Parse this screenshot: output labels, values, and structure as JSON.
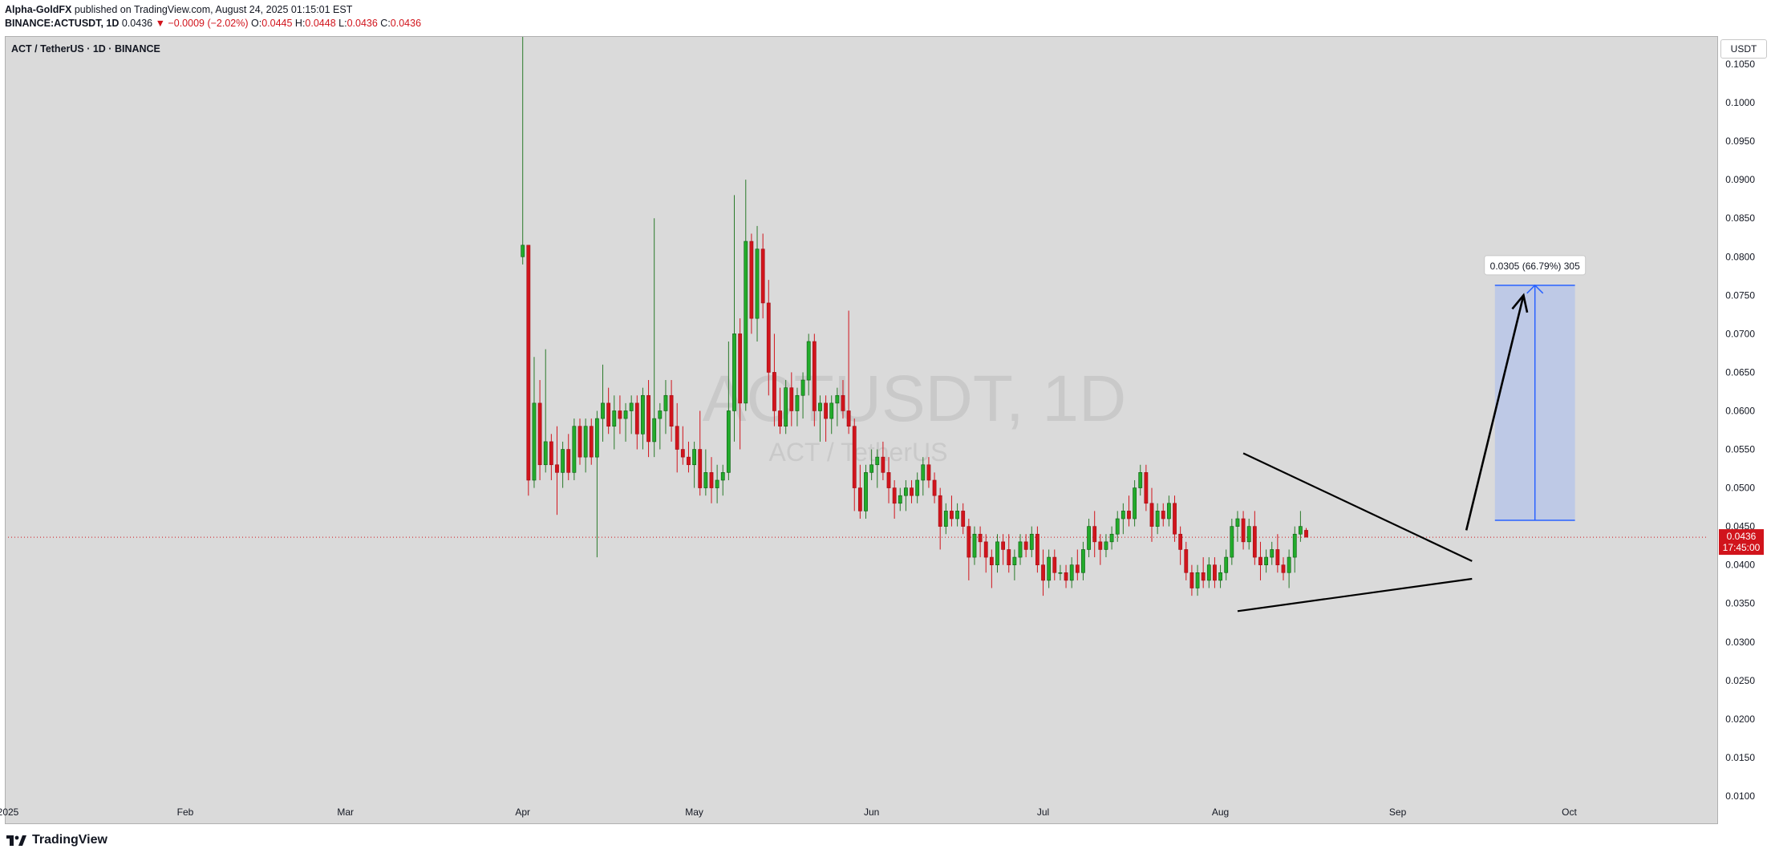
{
  "header": {
    "author": "Alpha-GoldFX",
    "published": "published on TradingView.com, August 24, 2025 01:15:01 EST",
    "symbol_line": "BINANCE:ACTUSDT, 1D",
    "last": "0.0436",
    "change": "−0.0009 (−2.02%)",
    "o_label": "O:",
    "o": "0.0445",
    "h_label": "H:",
    "h": "0.0448",
    "l_label": "L:",
    "l": "0.0436",
    "c_label": "C:",
    "c": "0.0436"
  },
  "legend": "ACT / TetherUS · 1D · BINANCE",
  "watermark": {
    "line1": "ACTUSDT, 1D",
    "line2": "ACT / TetherUS"
  },
  "currency": "USDT",
  "footer": {
    "brand": "TradingView"
  },
  "price_label": {
    "value": "0.0436",
    "countdown": "17:45:00"
  },
  "measure_label": "0.0305 (66.79%) 305",
  "colors": {
    "up": "#089981",
    "down": "#d1141c",
    "up_body": "#22ab2b",
    "range_fill": "#b8c6e8",
    "range_line": "#2962ff"
  },
  "chart_data": {
    "type": "candlestick",
    "title": "ACT / TetherUS · 1D · BINANCE",
    "ylim": [
      0.009,
      0.108
    ],
    "y_ticks": [
      "0.0100",
      "0.0150",
      "0.0200",
      "0.0250",
      "0.0300",
      "0.0350",
      "0.0400",
      "0.0450",
      "0.0500",
      "0.0550",
      "0.0600",
      "0.0650",
      "0.0700",
      "0.0750",
      "0.0800",
      "0.0850",
      "0.0900",
      "0.0950",
      "0.1000",
      "0.1050"
    ],
    "x_ticks": [
      "2025",
      "Feb",
      "Mar",
      "Apr",
      "May",
      "Jun",
      "Jul",
      "Aug",
      "Sep",
      "Oct"
    ],
    "x_tick_days": [
      0,
      31,
      59,
      90,
      120,
      151,
      181,
      212,
      243,
      273
    ],
    "first_candle_day": 90,
    "last_price": 0.0436,
    "candles": [
      [
        0.08,
        0.11,
        0.079,
        0.0815
      ],
      [
        0.0815,
        0.0815,
        0.049,
        0.051
      ],
      [
        0.051,
        0.067,
        0.05,
        0.061
      ],
      [
        0.061,
        0.064,
        0.051,
        0.053
      ],
      [
        0.053,
        0.068,
        0.052,
        0.056
      ],
      [
        0.056,
        0.057,
        0.051,
        0.053
      ],
      [
        0.053,
        0.058,
        0.0465,
        0.052
      ],
      [
        0.052,
        0.056,
        0.05,
        0.055
      ],
      [
        0.055,
        0.057,
        0.051,
        0.052
      ],
      [
        0.052,
        0.059,
        0.051,
        0.058
      ],
      [
        0.058,
        0.059,
        0.053,
        0.054
      ],
      [
        0.054,
        0.059,
        0.052,
        0.058
      ],
      [
        0.058,
        0.059,
        0.053,
        0.054
      ],
      [
        0.054,
        0.06,
        0.041,
        0.059
      ],
      [
        0.059,
        0.066,
        0.056,
        0.061
      ],
      [
        0.061,
        0.063,
        0.057,
        0.058
      ],
      [
        0.058,
        0.062,
        0.055,
        0.06
      ],
      [
        0.06,
        0.062,
        0.057,
        0.059
      ],
      [
        0.059,
        0.061,
        0.056,
        0.06
      ],
      [
        0.06,
        0.062,
        0.057,
        0.061
      ],
      [
        0.061,
        0.062,
        0.055,
        0.057
      ],
      [
        0.057,
        0.063,
        0.055,
        0.062
      ],
      [
        0.062,
        0.064,
        0.054,
        0.056
      ],
      [
        0.056,
        0.085,
        0.054,
        0.059
      ],
      [
        0.059,
        0.061,
        0.055,
        0.06
      ],
      [
        0.06,
        0.064,
        0.057,
        0.062
      ],
      [
        0.062,
        0.064,
        0.056,
        0.058
      ],
      [
        0.058,
        0.061,
        0.052,
        0.055
      ],
      [
        0.055,
        0.058,
        0.053,
        0.054
      ],
      [
        0.054,
        0.056,
        0.052,
        0.053
      ],
      [
        0.053,
        0.056,
        0.05,
        0.055
      ],
      [
        0.055,
        0.06,
        0.049,
        0.05
      ],
      [
        0.05,
        0.055,
        0.049,
        0.052
      ],
      [
        0.052,
        0.054,
        0.048,
        0.05
      ],
      [
        0.05,
        0.053,
        0.048,
        0.051
      ],
      [
        0.051,
        0.053,
        0.049,
        0.052
      ],
      [
        0.052,
        0.069,
        0.051,
        0.06
      ],
      [
        0.06,
        0.088,
        0.056,
        0.07
      ],
      [
        0.07,
        0.072,
        0.055,
        0.061
      ],
      [
        0.061,
        0.09,
        0.06,
        0.082
      ],
      [
        0.082,
        0.083,
        0.07,
        0.072
      ],
      [
        0.072,
        0.084,
        0.069,
        0.081
      ],
      [
        0.081,
        0.083,
        0.072,
        0.074
      ],
      [
        0.074,
        0.077,
        0.062,
        0.065
      ],
      [
        0.065,
        0.07,
        0.058,
        0.06
      ],
      [
        0.06,
        0.063,
        0.057,
        0.058
      ],
      [
        0.058,
        0.064,
        0.057,
        0.063
      ],
      [
        0.063,
        0.065,
        0.058,
        0.06
      ],
      [
        0.06,
        0.063,
        0.058,
        0.062
      ],
      [
        0.062,
        0.065,
        0.059,
        0.064
      ],
      [
        0.064,
        0.07,
        0.062,
        0.069
      ],
      [
        0.069,
        0.07,
        0.058,
        0.06
      ],
      [
        0.06,
        0.062,
        0.056,
        0.061
      ],
      [
        0.061,
        0.062,
        0.056,
        0.059
      ],
      [
        0.059,
        0.062,
        0.057,
        0.061
      ],
      [
        0.061,
        0.063,
        0.058,
        0.062
      ],
      [
        0.062,
        0.064,
        0.059,
        0.06
      ],
      [
        0.06,
        0.073,
        0.057,
        0.058
      ],
      [
        0.058,
        0.059,
        0.047,
        0.05
      ],
      [
        0.05,
        0.053,
        0.046,
        0.047
      ],
      [
        0.047,
        0.053,
        0.046,
        0.052
      ],
      [
        0.052,
        0.055,
        0.051,
        0.053
      ],
      [
        0.053,
        0.055,
        0.05,
        0.054
      ],
      [
        0.054,
        0.056,
        0.051,
        0.052
      ],
      [
        0.052,
        0.054,
        0.048,
        0.05
      ],
      [
        0.05,
        0.051,
        0.046,
        0.048
      ],
      [
        0.048,
        0.05,
        0.047,
        0.049
      ],
      [
        0.049,
        0.051,
        0.047,
        0.05
      ],
      [
        0.05,
        0.051,
        0.048,
        0.049
      ],
      [
        0.049,
        0.052,
        0.048,
        0.051
      ],
      [
        0.051,
        0.054,
        0.049,
        0.053
      ],
      [
        0.053,
        0.054,
        0.05,
        0.051
      ],
      [
        0.051,
        0.052,
        0.048,
        0.049
      ],
      [
        0.049,
        0.05,
        0.042,
        0.045
      ],
      [
        0.045,
        0.048,
        0.044,
        0.047
      ],
      [
        0.047,
        0.049,
        0.045,
        0.046
      ],
      [
        0.046,
        0.048,
        0.045,
        0.047
      ],
      [
        0.047,
        0.048,
        0.044,
        0.045
      ],
      [
        0.045,
        0.046,
        0.038,
        0.041
      ],
      [
        0.041,
        0.045,
        0.04,
        0.044
      ],
      [
        0.044,
        0.045,
        0.041,
        0.043
      ],
      [
        0.043,
        0.044,
        0.039,
        0.041
      ],
      [
        0.041,
        0.042,
        0.037,
        0.04
      ],
      [
        0.04,
        0.044,
        0.039,
        0.043
      ],
      [
        0.043,
        0.044,
        0.04,
        0.042
      ],
      [
        0.042,
        0.044,
        0.039,
        0.04
      ],
      [
        0.04,
        0.042,
        0.038,
        0.041
      ],
      [
        0.041,
        0.044,
        0.04,
        0.043
      ],
      [
        0.043,
        0.044,
        0.041,
        0.042
      ],
      [
        0.042,
        0.045,
        0.041,
        0.044
      ],
      [
        0.044,
        0.045,
        0.039,
        0.04
      ],
      [
        0.04,
        0.042,
        0.036,
        0.038
      ],
      [
        0.038,
        0.042,
        0.037,
        0.041
      ],
      [
        0.041,
        0.042,
        0.038,
        0.039
      ],
      [
        0.039,
        0.04,
        0.038,
        0.039
      ],
      [
        0.039,
        0.04,
        0.037,
        0.038
      ],
      [
        0.038,
        0.041,
        0.037,
        0.04
      ],
      [
        0.04,
        0.042,
        0.038,
        0.039
      ],
      [
        0.039,
        0.043,
        0.038,
        0.042
      ],
      [
        0.042,
        0.046,
        0.041,
        0.045
      ],
      [
        0.045,
        0.047,
        0.041,
        0.043
      ],
      [
        0.043,
        0.044,
        0.04,
        0.042
      ],
      [
        0.042,
        0.044,
        0.041,
        0.043
      ],
      [
        0.043,
        0.045,
        0.042,
        0.044
      ],
      [
        0.044,
        0.047,
        0.043,
        0.046
      ],
      [
        0.046,
        0.048,
        0.044,
        0.047
      ],
      [
        0.047,
        0.049,
        0.045,
        0.046
      ],
      [
        0.046,
        0.051,
        0.045,
        0.05
      ],
      [
        0.05,
        0.053,
        0.049,
        0.052
      ],
      [
        0.052,
        0.053,
        0.047,
        0.048
      ],
      [
        0.048,
        0.05,
        0.043,
        0.045
      ],
      [
        0.045,
        0.048,
        0.044,
        0.047
      ],
      [
        0.047,
        0.048,
        0.045,
        0.046
      ],
      [
        0.046,
        0.049,
        0.045,
        0.048
      ],
      [
        0.048,
        0.049,
        0.043,
        0.044
      ],
      [
        0.044,
        0.045,
        0.04,
        0.042
      ],
      [
        0.042,
        0.043,
        0.038,
        0.039
      ],
      [
        0.039,
        0.04,
        0.036,
        0.037
      ],
      [
        0.037,
        0.04,
        0.036,
        0.039
      ],
      [
        0.039,
        0.041,
        0.037,
        0.038
      ],
      [
        0.038,
        0.041,
        0.037,
        0.04
      ],
      [
        0.04,
        0.041,
        0.037,
        0.038
      ],
      [
        0.038,
        0.04,
        0.037,
        0.039
      ],
      [
        0.039,
        0.042,
        0.038,
        0.041
      ],
      [
        0.041,
        0.046,
        0.04,
        0.045
      ],
      [
        0.045,
        0.047,
        0.043,
        0.046
      ],
      [
        0.046,
        0.047,
        0.042,
        0.043
      ],
      [
        0.043,
        0.046,
        0.042,
        0.045
      ],
      [
        0.045,
        0.047,
        0.04,
        0.041
      ],
      [
        0.041,
        0.043,
        0.038,
        0.04
      ],
      [
        0.04,
        0.042,
        0.039,
        0.041
      ],
      [
        0.041,
        0.043,
        0.04,
        0.042
      ],
      [
        0.042,
        0.044,
        0.039,
        0.04
      ],
      [
        0.04,
        0.041,
        0.038,
        0.039
      ],
      [
        0.039,
        0.042,
        0.037,
        0.041
      ],
      [
        0.041,
        0.045,
        0.039,
        0.044
      ],
      [
        0.044,
        0.047,
        0.043,
        0.045
      ],
      [
        0.0445,
        0.0448,
        0.0436,
        0.0436
      ]
    ],
    "drawings": {
      "upper_trendline": {
        "from": [
          216,
          0.0545
        ],
        "to": [
          256,
          0.0405
        ]
      },
      "lower_trendline": {
        "from": [
          215,
          0.034
        ],
        "to": [
          256,
          0.0382
        ]
      },
      "arrow": {
        "from": [
          255,
          0.0445
        ],
        "to": [
          265,
          0.075
        ]
      },
      "price_range": {
        "from_day": [
          260,
          274
        ],
        "low": 0.0458,
        "high": 0.0763
      }
    }
  }
}
